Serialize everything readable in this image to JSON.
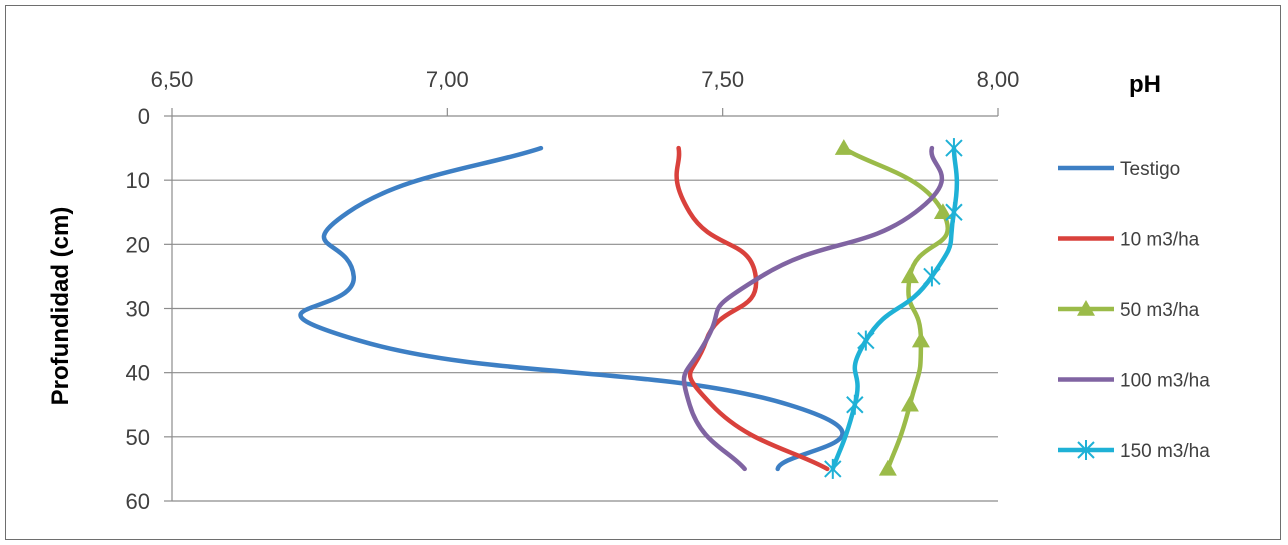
{
  "chart_data": {
    "type": "line",
    "title": "",
    "xlabel": "pH",
    "ylabel": "Profundidad (cm)",
    "xlim": [
      6.5,
      8.0
    ],
    "ylim": [
      0,
      60
    ],
    "x_axis_position": "top",
    "y_axis_inverted": true,
    "x_ticks": [
      6.5,
      7.0,
      7.5,
      8.0
    ],
    "x_tick_labels": [
      "6,50",
      "7,00",
      "7,50",
      "8,00"
    ],
    "y_ticks": [
      0,
      10,
      20,
      30,
      40,
      50,
      60
    ],
    "y_tick_labels": [
      "0",
      "10",
      "20",
      "30",
      "40",
      "50",
      "60"
    ],
    "grid": "horizontal",
    "legend_position": "right",
    "depths": [
      5,
      15,
      25,
      35,
      45,
      55
    ],
    "series": [
      {
        "name": "Testigo",
        "color": "#3d7fc4",
        "marker": "none",
        "ph": [
          7.17,
          6.82,
          6.83,
          6.84,
          7.62,
          7.6
        ]
      },
      {
        "name": "10 m3/ha",
        "color": "#d9413c",
        "ph": [
          7.42,
          7.44,
          7.56,
          7.47,
          7.48,
          7.69
        ],
        "marker": "none"
      },
      {
        "name": "50 m3/ha",
        "color": "#9bbb49",
        "ph": [
          7.72,
          7.9,
          7.84,
          7.86,
          7.84,
          7.8
        ],
        "marker": "triangle"
      },
      {
        "name": "100 m3/ha",
        "color": "#8064a2",
        "ph": [
          7.88,
          7.85,
          7.57,
          7.47,
          7.44,
          7.54
        ],
        "marker": "none"
      },
      {
        "name": "150 m3/ha",
        "color": "#1fb1d6",
        "ph": [
          7.92,
          7.92,
          7.88,
          7.76,
          7.74,
          7.7
        ],
        "marker": "asterisk"
      }
    ]
  }
}
